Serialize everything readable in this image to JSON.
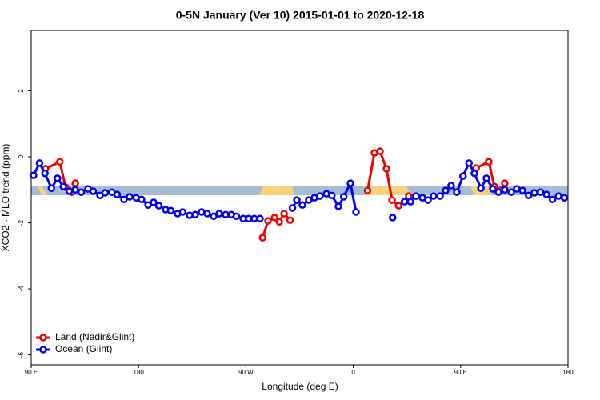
{
  "chart_data": {
    "type": "line",
    "title": "0-5N January (Ver 10)   2015-01-01 to 2020-12-18",
    "x_label": "Longitude (deg E)",
    "y_label": "XCO2 - MLO trend (ppm)",
    "xlim": [
      90,
      540
    ],
    "ylim": [
      -6.3,
      3.83
    ],
    "xticks": [
      {
        "value": 90,
        "label": "90 E"
      },
      180,
      {
        "value": 270,
        "label": "90 W"
      },
      {
        "value": 360,
        "label": "0"
      },
      {
        "value": 450,
        "label": "90 E"
      },
      {
        "value": 540,
        "label": "180"
      }
    ],
    "yticks": [
      2,
      0,
      -2,
      -4,
      -6
    ],
    "legend": "bottom-left",
    "series": [
      {
        "name": "Land (Nadir&Glint)",
        "color": "#ee0000",
        "x": [
          102,
          114,
          118.8,
          124,
          127,
          null,
          284,
          288.5,
          294,
          298,
          302,
          307,
          null,
          372,
          377.7,
          382.4,
          387.8,
          392.5,
          398,
          406.5,
          null,
          463,
          473.6,
          478.3,
          483,
          487
        ],
        "values": [
          -0.36,
          -0.15,
          -0.92,
          -1.07,
          -0.8,
          null,
          -2.45,
          -1.94,
          -1.84,
          -1.97,
          -1.72,
          -1.92,
          null,
          -1.02,
          0.12,
          0.17,
          -0.36,
          -1.31,
          -1.48,
          -1.19,
          null,
          -0.34,
          -0.15,
          -0.9,
          -1.02,
          -0.8
        ]
      },
      {
        "name": "Ocean (Glint)",
        "color": "#0000ee",
        "x": [
          92,
          97,
          101.5,
          107,
          112,
          117,
          122,
          127,
          132,
          137.6,
          142,
          147.7,
          152,
          157.7,
          162,
          167.8,
          172.5,
          178,
          182.5,
          188,
          192.6,
          197,
          202.7,
          207,
          212.7,
          217,
          222.8,
          227.5,
          232.8,
          237.5,
          243,
          247.6,
          253,
          257.7,
          262,
          267.7,
          272.4,
          277,
          281.8,
          null,
          309,
          312.7,
          317.3,
          322.7,
          327.4,
          332,
          337.5,
          342,
          347.5,
          352,
          357.6,
          362.3,
          null,
          393,
          null,
          403,
          408,
          412.6,
          418,
          422.6,
          427.3,
          432.7,
          437.4,
          442,
          446.8,
          452,
          457,
          461.5,
          467,
          471.6,
          477,
          481.7,
          487,
          492.4,
          497,
          501.8,
          507,
          511.8,
          517,
          522,
          527,
          532,
          537
        ],
        "values": [
          -0.56,
          -0.19,
          -0.5,
          -0.95,
          -0.65,
          -0.9,
          -1.04,
          -1.0,
          -1.07,
          -0.97,
          -1.04,
          -1.17,
          -1.09,
          -1.07,
          -1.14,
          -1.29,
          -1.21,
          -1.24,
          -1.29,
          -1.46,
          -1.38,
          -1.48,
          -1.6,
          -1.63,
          -1.72,
          -1.67,
          -1.77,
          -1.75,
          -1.67,
          -1.72,
          -1.8,
          -1.72,
          -1.75,
          -1.75,
          -1.8,
          -1.87,
          -1.87,
          -1.87,
          -1.87,
          null,
          -1.55,
          -1.31,
          -1.46,
          -1.31,
          -1.24,
          -1.19,
          -1.12,
          -1.17,
          -1.5,
          -1.21,
          -0.8,
          -1.67,
          null,
          -1.84,
          null,
          -1.36,
          -1.36,
          -1.19,
          -1.24,
          -1.31,
          -1.19,
          -1.19,
          -1.02,
          -0.87,
          -1.07,
          -0.58,
          -0.19,
          -0.5,
          -0.95,
          -0.65,
          -0.97,
          -1.07,
          -1.0,
          -1.07,
          -0.97,
          -1.02,
          -1.17,
          -1.09,
          -1.07,
          -1.14,
          -1.29,
          -1.19,
          -1.24
        ]
      }
    ]
  }
}
